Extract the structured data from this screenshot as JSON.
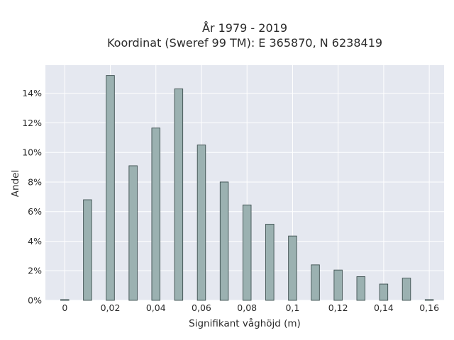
{
  "chart_data": {
    "type": "bar",
    "title_lines": [
      "År 1979 - 2019",
      "Koordinat (Sweref 99 TM): E 365870, N 6238419"
    ],
    "xlabel": "Signifikant våghöjd (m)",
    "ylabel": "Andel",
    "x_ticks": [
      0,
      0.02,
      0.04,
      0.06,
      0.08,
      0.1,
      0.12,
      0.14,
      0.16
    ],
    "x_tick_labels": [
      "0",
      "0,02",
      "0,04",
      "0,06",
      "0,08",
      "0,1",
      "0,12",
      "0,14",
      "0,16"
    ],
    "y_ticks": [
      0,
      2,
      4,
      6,
      8,
      10,
      12,
      14
    ],
    "y_tick_labels": [
      "0%",
      "2%",
      "4%",
      "6%",
      "8%",
      "10%",
      "12%",
      "14%"
    ],
    "xlim": [
      -0.0085,
      0.1665
    ],
    "ylim": [
      0,
      15.9
    ],
    "grid": true,
    "background": "#e5e8f0",
    "bar_color": "#9bb1b1",
    "bar_edge_color": "#3d4f4f",
    "x": [
      0,
      0.01,
      0.02,
      0.03,
      0.04,
      0.05,
      0.06,
      0.07,
      0.08,
      0.09,
      0.1,
      0.11,
      0.12,
      0.13,
      0.14,
      0.15,
      0.16
    ],
    "values": [
      0.05,
      6.8,
      15.2,
      9.1,
      11.65,
      14.3,
      10.5,
      8.0,
      6.45,
      5.15,
      4.35,
      2.4,
      2.05,
      1.6,
      1.1,
      1.5,
      0.05
    ],
    "value_unit": "%"
  }
}
